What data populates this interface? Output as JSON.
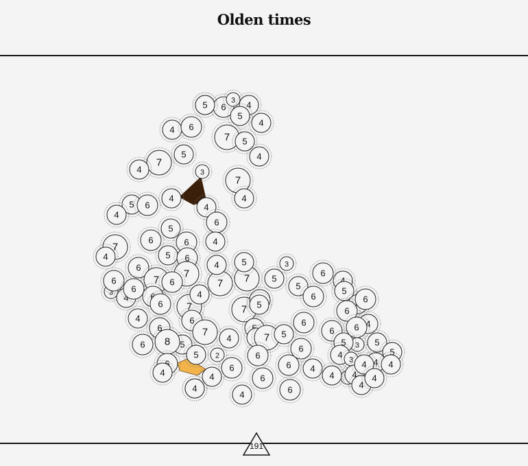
{
  "header": {
    "title": "Olden times"
  },
  "footer": {
    "counter": "191"
  },
  "colors": {
    "background": "#f5f4f5",
    "node_fill": "#f5f4f5",
    "node_stroke": "#222222",
    "highlight_dark": "#3a1f0a",
    "highlight_orange": "#f2b44a"
  },
  "nodes": [
    {
      "label": "4"
    },
    {
      "label": "6"
    },
    {
      "label": "3"
    },
    {
      "label": "4"
    },
    {
      "label": "5"
    },
    {
      "label": "4"
    },
    {
      "label": "4"
    },
    {
      "label": "6"
    },
    {
      "label": "7"
    },
    {
      "label": "5"
    },
    {
      "label": "5"
    },
    {
      "label": "4"
    },
    {
      "label": "7"
    },
    {
      "label": "4"
    },
    {
      "label": "3"
    },
    {
      "label": "7"
    },
    {
      "label": "4"
    },
    {
      "label": "4"
    },
    {
      "label": "4"
    },
    {
      "label": "5"
    },
    {
      "label": "6"
    },
    {
      "label": "6"
    },
    {
      "label": "5"
    },
    {
      "label": "4"
    },
    {
      "label": "6"
    },
    {
      "label": "6"
    },
    {
      "label": "7"
    },
    {
      "label": "4"
    },
    {
      "label": "5"
    },
    {
      "label": "6"
    },
    {
      "label": "4"
    },
    {
      "label": "3"
    },
    {
      "label": "6"
    },
    {
      "label": "7"
    },
    {
      "label": "6"
    },
    {
      "label": "7"
    },
    {
      "label": "7"
    },
    {
      "label": "4"
    },
    {
      "label": "7"
    },
    {
      "label": "5"
    },
    {
      "label": "6"
    },
    {
      "label": "6"
    },
    {
      "label": "4"
    },
    {
      "label": "6"
    },
    {
      "label": "5"
    },
    {
      "label": "3"
    },
    {
      "label": "5"
    },
    {
      "label": "4"
    },
    {
      "label": "6"
    },
    {
      "label": "6"
    },
    {
      "label": "7"
    },
    {
      "label": "7"
    },
    {
      "label": "6"
    },
    {
      "label": "6"
    },
    {
      "label": "4"
    },
    {
      "label": "4"
    },
    {
      "label": "5"
    },
    {
      "label": "5"
    },
    {
      "label": "6"
    },
    {
      "label": "6"
    },
    {
      "label": "5"
    },
    {
      "label": "6"
    },
    {
      "label": "5"
    },
    {
      "label": "7"
    },
    {
      "label": "4"
    },
    {
      "label": "6"
    },
    {
      "label": "7"
    },
    {
      "label": "6"
    },
    {
      "label": "5"
    },
    {
      "label": "4"
    },
    {
      "label": "6"
    },
    {
      "label": "6"
    },
    {
      "label": "3"
    },
    {
      "label": "5"
    },
    {
      "label": "6"
    },
    {
      "label": "8"
    },
    {
      "label": "5"
    },
    {
      "label": "6"
    },
    {
      "label": "6"
    },
    {
      "label": "4"
    },
    {
      "label": "5"
    },
    {
      "label": "4"
    },
    {
      "label": "2"
    },
    {
      "label": "5"
    },
    {
      "label": "6"
    },
    {
      "label": "4"
    },
    {
      "label": "6"
    },
    {
      "label": "3"
    },
    {
      "label": "5"
    },
    {
      "label": "3"
    },
    {
      "label": "4"
    },
    {
      "label": "4"
    },
    {
      "label": "4"
    },
    {
      "label": "4"
    },
    {
      "label": "4"
    },
    {
      "label": "4"
    },
    {
      "label": "4"
    },
    {
      "label": "4"
    },
    {
      "label": "4"
    },
    {
      "label": "6"
    },
    {
      "label": "6"
    },
    {
      "label": "4"
    },
    {
      "label": "4"
    },
    {
      "label": "4"
    },
    {
      "label": "6"
    },
    {
      "label": "5"
    }
  ]
}
